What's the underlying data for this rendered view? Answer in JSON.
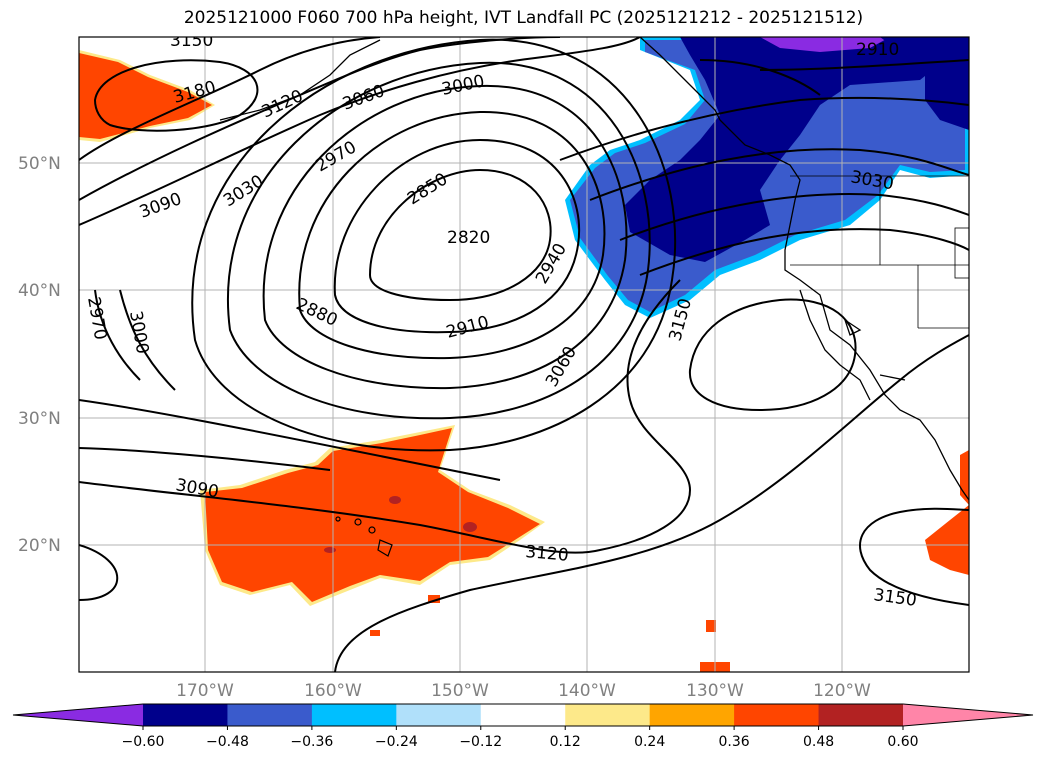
{
  "title": "2025121000 F060 700 hPa height, IVT Landfall PC (2025121212 - 2025121512)",
  "lat_labels": [
    "50°N",
    "40°N",
    "30°N",
    "20°N"
  ],
  "lon_labels": [
    "170°W",
    "160°W",
    "150°W",
    "140°W",
    "130°W",
    "120°W"
  ],
  "contour_labels": [
    "3150",
    "3180",
    "3120",
    "3060",
    "3000",
    "2970",
    "3030",
    "3090",
    "2850",
    "2820",
    "2940",
    "2880",
    "2910",
    "2970",
    "3000",
    "3060",
    "3150",
    "3090",
    "3120",
    "3150",
    "2910",
    "3030"
  ],
  "colorbar": {
    "labels": [
      "−0.60",
      "−0.48",
      "−0.36",
      "−0.24",
      "−0.12",
      "0.12",
      "0.24",
      "0.36",
      "0.48",
      "0.60"
    ],
    "colors": [
      "#8a2be2",
      "#00008b",
      "#3a5bcc",
      "#00bfff",
      "#b0e0fa",
      "#ffffff",
      "#fde98a",
      "#ffa500",
      "#ff4500",
      "#b22222",
      "#ff85a8"
    ]
  },
  "colors": {
    "deep_blue": "#00008b",
    "mid_blue": "#3a5bcc",
    "cyan": "#00bfff",
    "orange_red": "#ff4500",
    "dark_red": "#b22222",
    "purple": "#8a2be2",
    "yellow": "#fde98a",
    "orange": "#ffa500"
  }
}
